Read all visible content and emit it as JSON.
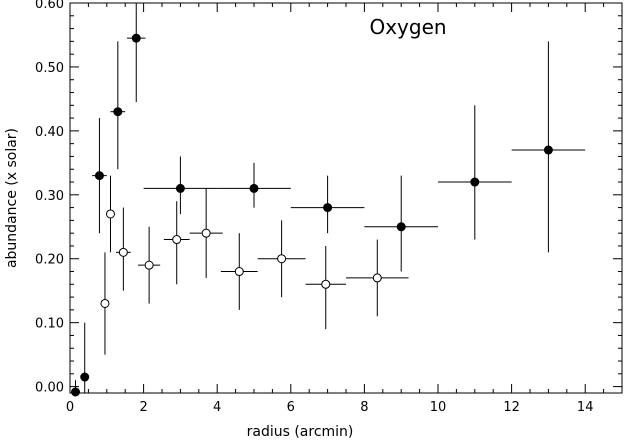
{
  "chart_data": {
    "type": "scatter",
    "title": "Oxygen",
    "xlabel": "radius (arcmin)",
    "ylabel": "abundance (x solar)",
    "xlim": [
      0,
      15
    ],
    "ylim": [
      -0.01,
      0.6
    ],
    "xticks": [
      0,
      2,
      4,
      6,
      8,
      10,
      12,
      14
    ],
    "xtick_labels": [
      "0",
      "2",
      "4",
      "6",
      "8",
      "10",
      "12",
      "14"
    ],
    "yticks": [
      0.0,
      0.1,
      0.2,
      0.3,
      0.4,
      0.5,
      0.6
    ],
    "ytick_labels": [
      "0.00",
      "0.10",
      "0.20",
      "0.30",
      "0.40",
      "0.50",
      "0.60"
    ],
    "grid": false,
    "series": [
      {
        "marker": "filled-circle",
        "points": [
          {
            "x": 0.15,
            "y": -0.01,
            "xerr": 0.15,
            "yerr_low": 0.01,
            "yerr_high": 0.02
          },
          {
            "x": 0.4,
            "y": 0.015,
            "xerr": 0.0,
            "yerr_low": 0.025,
            "yerr_high": 0.085
          },
          {
            "x": 0.8,
            "y": 0.33,
            "xerr": 0.2,
            "yerr_low": 0.09,
            "yerr_high": 0.09
          },
          {
            "x": 1.3,
            "y": 0.43,
            "xerr": 0.2,
            "yerr_low": 0.09,
            "yerr_high": 0.11
          },
          {
            "x": 1.8,
            "y": 0.545,
            "xerr": 0.25,
            "yerr_low": 0.1,
            "yerr_high": 0.1
          },
          {
            "x": 3.0,
            "y": 0.31,
            "xerr": 1.0,
            "yerr_low": 0.04,
            "yerr_high": 0.05
          },
          {
            "x": 5.0,
            "y": 0.31,
            "xerr": 1.0,
            "yerr_low": 0.03,
            "yerr_high": 0.04
          },
          {
            "x": 7.0,
            "y": 0.28,
            "xerr": 1.0,
            "yerr_low": 0.04,
            "yerr_high": 0.05
          },
          {
            "x": 9.0,
            "y": 0.25,
            "xerr": 1.0,
            "yerr_low": 0.07,
            "yerr_high": 0.08
          },
          {
            "x": 11.0,
            "y": 0.32,
            "xerr": 1.0,
            "yerr_low": 0.09,
            "yerr_high": 0.12
          },
          {
            "x": 13.0,
            "y": 0.37,
            "xerr": 1.0,
            "yerr_low": 0.16,
            "yerr_high": 0.17
          }
        ]
      },
      {
        "marker": "open-circle",
        "points": [
          {
            "x": 0.95,
            "y": 0.13,
            "xerr": 0.0,
            "yerr_low": 0.08,
            "yerr_high": 0.08
          },
          {
            "x": 1.1,
            "y": 0.27,
            "xerr": 0.0,
            "yerr_low": 0.06,
            "yerr_high": 0.06
          },
          {
            "x": 1.45,
            "y": 0.21,
            "xerr": 0.2,
            "yerr_low": 0.06,
            "yerr_high": 0.07
          },
          {
            "x": 2.15,
            "y": 0.19,
            "xerr": 0.3,
            "yerr_low": 0.06,
            "yerr_high": 0.06
          },
          {
            "x": 2.9,
            "y": 0.23,
            "xerr": 0.35,
            "yerr_low": 0.07,
            "yerr_high": 0.06
          },
          {
            "x": 3.7,
            "y": 0.24,
            "xerr": 0.45,
            "yerr_low": 0.07,
            "yerr_high": 0.07
          },
          {
            "x": 4.6,
            "y": 0.18,
            "xerr": 0.5,
            "yerr_low": 0.06,
            "yerr_high": 0.06
          },
          {
            "x": 5.75,
            "y": 0.2,
            "xerr": 0.65,
            "yerr_low": 0.06,
            "yerr_high": 0.06
          },
          {
            "x": 6.95,
            "y": 0.16,
            "xerr": 0.55,
            "yerr_low": 0.07,
            "yerr_high": 0.06
          },
          {
            "x": 8.35,
            "y": 0.17,
            "xerr": 0.85,
            "yerr_low": 0.06,
            "yerr_high": 0.06
          }
        ]
      }
    ]
  }
}
